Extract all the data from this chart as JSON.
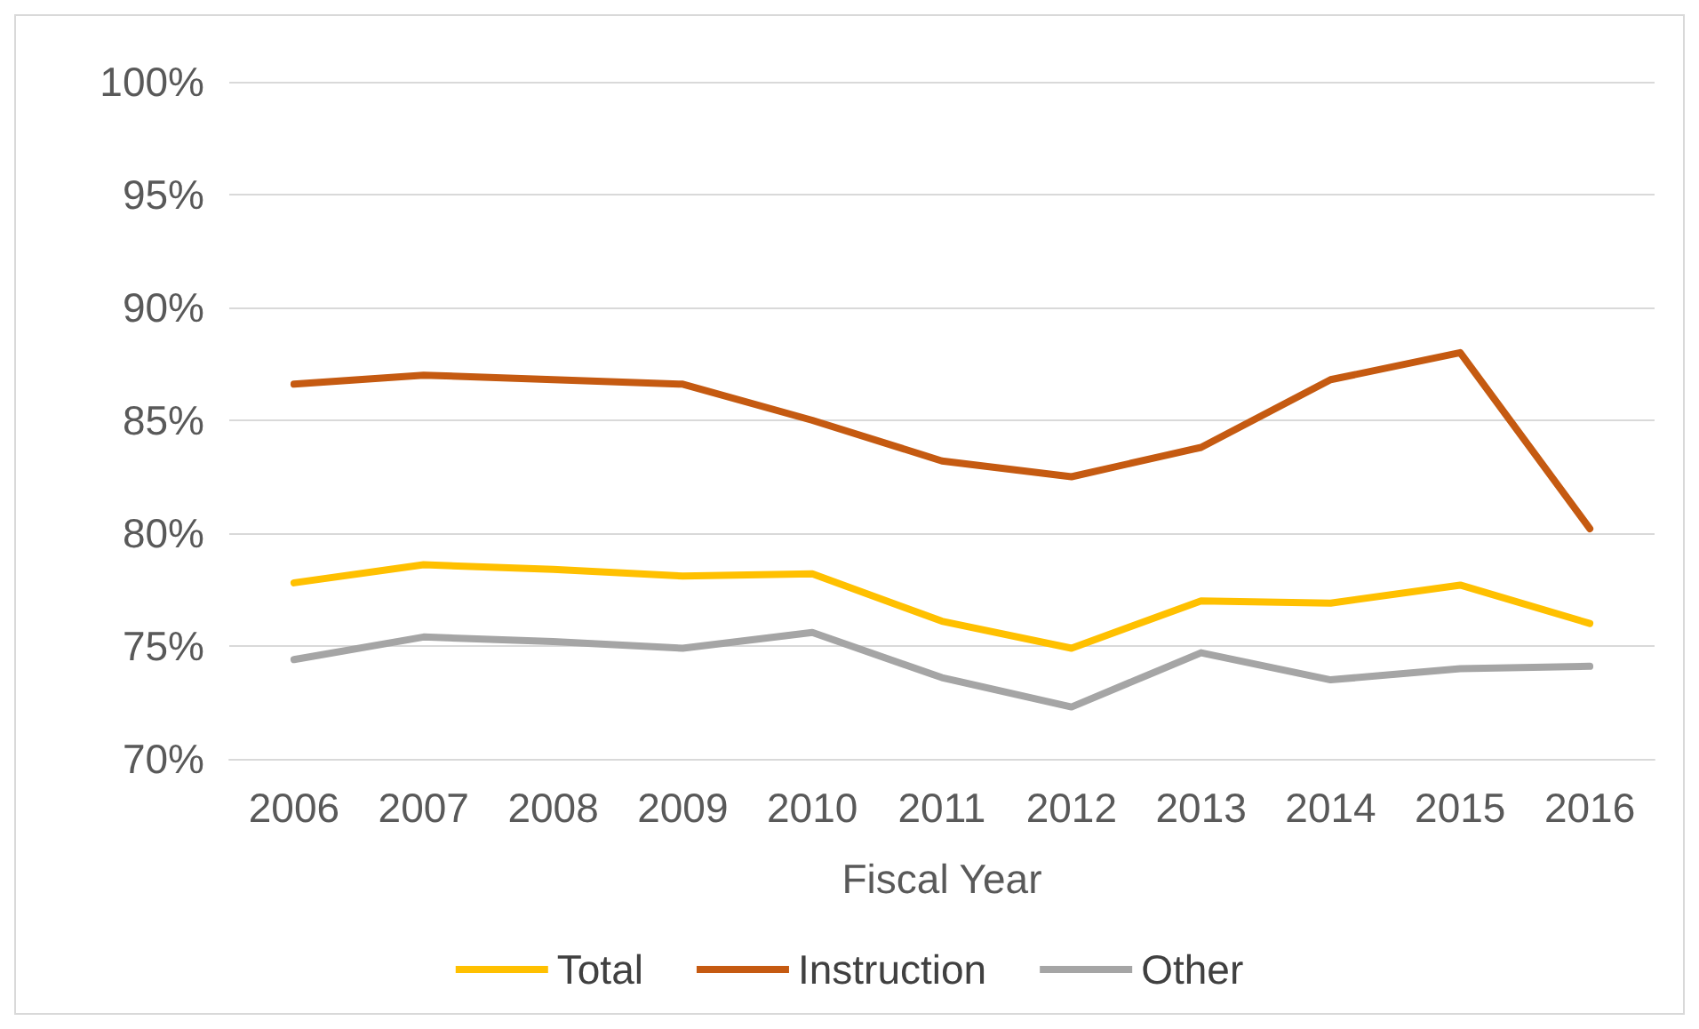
{
  "chart_data": {
    "type": "line",
    "xlabel": "Fiscal Year",
    "categories": [
      "2006",
      "2007",
      "2008",
      "2009",
      "2010",
      "2011",
      "2012",
      "2013",
      "2014",
      "2015",
      "2016"
    ],
    "series": [
      {
        "name": "Total",
        "color": "#ffc000",
        "values": [
          77.8,
          78.6,
          78.4,
          78.1,
          78.2,
          76.1,
          74.9,
          77.0,
          76.9,
          77.7,
          76.0
        ]
      },
      {
        "name": "Instruction",
        "color": "#c55a11",
        "values": [
          86.6,
          87.0,
          86.8,
          86.6,
          85.0,
          83.2,
          82.5,
          83.8,
          86.8,
          88.0,
          80.2
        ]
      },
      {
        "name": "Other",
        "color": "#a5a5a5",
        "values": [
          74.4,
          75.4,
          75.2,
          74.9,
          75.6,
          73.6,
          72.3,
          74.7,
          73.5,
          74.0,
          74.1
        ]
      }
    ],
    "ylim": [
      70,
      100
    ],
    "yticks": [
      {
        "value": 70,
        "label": "70%"
      },
      {
        "value": 75,
        "label": "75%"
      },
      {
        "value": 80,
        "label": "80%"
      },
      {
        "value": 85,
        "label": "85%"
      },
      {
        "value": 90,
        "label": "90%"
      },
      {
        "value": 95,
        "label": "95%"
      },
      {
        "value": 100,
        "label": "100%"
      }
    ],
    "grid": "y",
    "legend": "bottom",
    "marker": "none",
    "line_style": "solid"
  }
}
